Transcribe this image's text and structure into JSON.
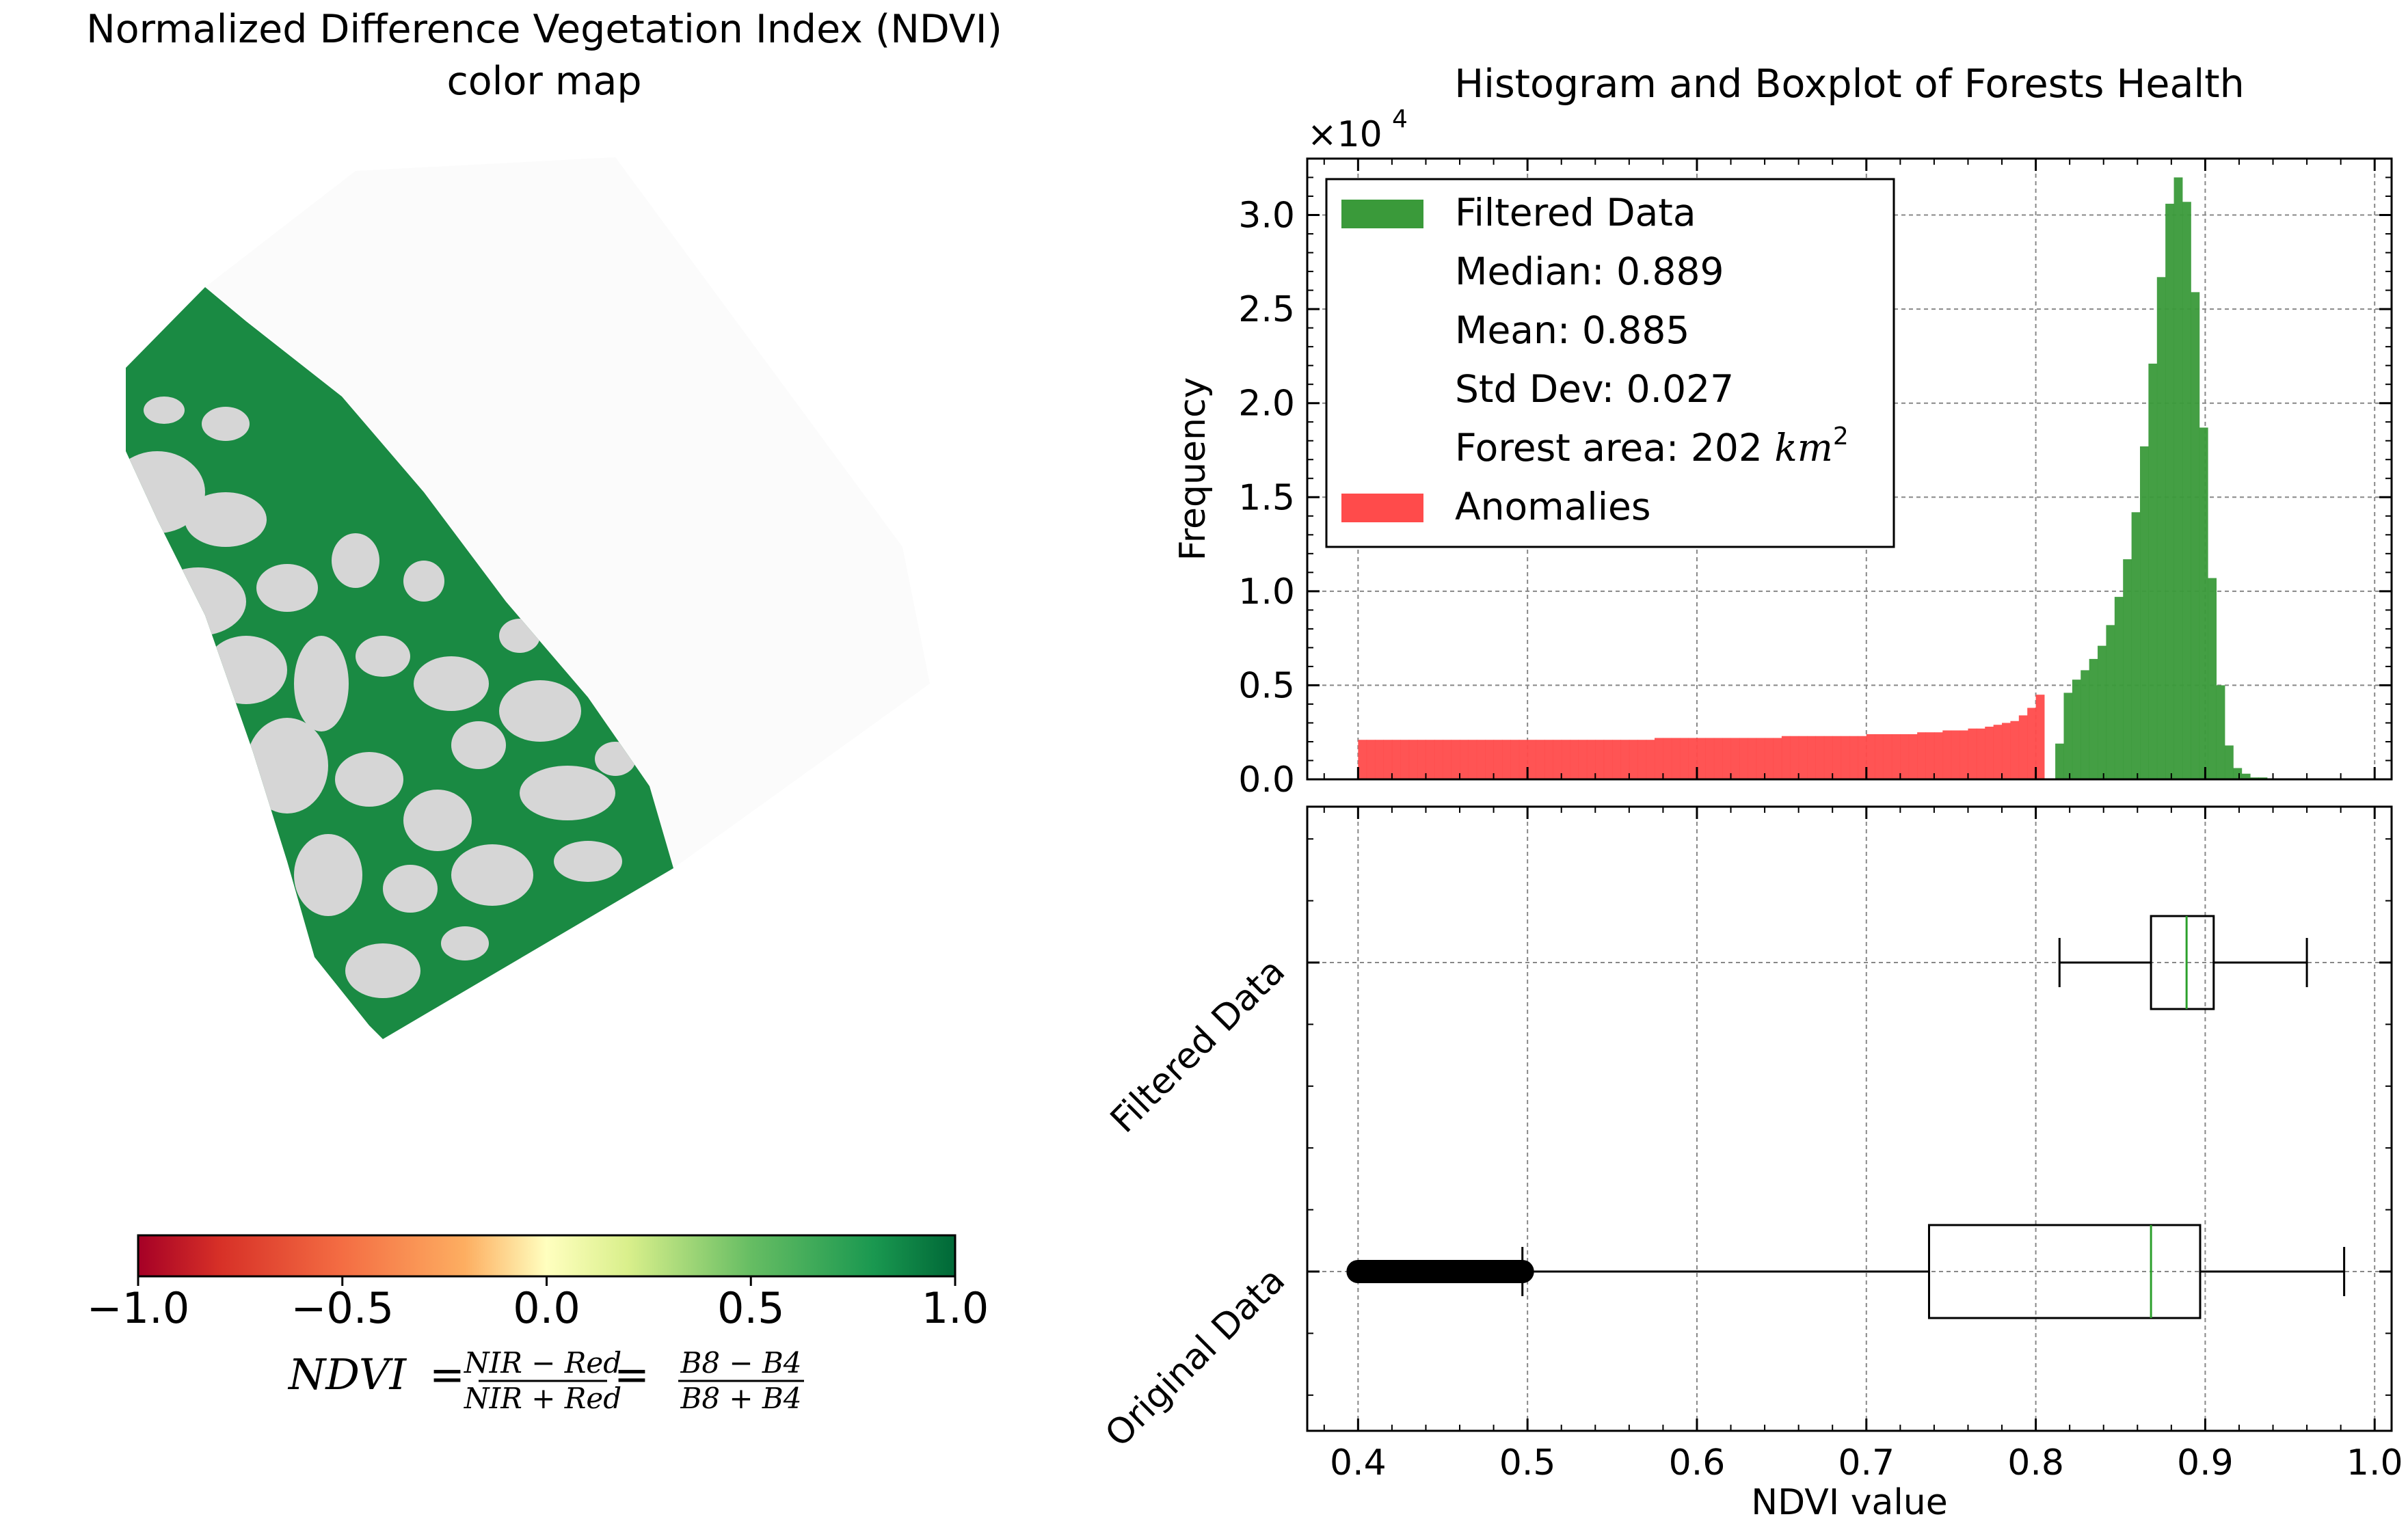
{
  "map": {
    "title_line1": "Normalized Difference Vegetation Index (NDVI)",
    "title_line2": "color map",
    "colorbar": {
      "ticks": [
        "−1.0",
        "−0.5",
        "0.0",
        "0.5",
        "1.0"
      ],
      "colors": [
        "#a50026",
        "#f46d43",
        "#ffffbf",
        "#66bd63",
        "#006837"
      ]
    },
    "formula": {
      "lhs": "NDVI",
      "eq": "=",
      "num1": "NIR − Red",
      "den1": "NIR + Red",
      "num2": "B8 − B4",
      "den2": "B8 + B4"
    },
    "colors": {
      "forest": "#1a8a43",
      "bare": "#d6d6d6"
    }
  },
  "chart_data": [
    {
      "type": "bar",
      "title": "Histogram and Boxplot of Forests Health",
      "ylabel": "Frequency",
      "y_multiplier": "×10",
      "y_multiplier_exp": "4",
      "xlim": [
        0.37,
        1.01
      ],
      "ylim": [
        0,
        3.3
      ],
      "y_ticks": [
        0.0,
        0.5,
        1.0,
        1.5,
        2.0,
        2.5,
        3.0
      ],
      "y_tick_labels": [
        "0.0",
        "0.5",
        "1.0",
        "1.5",
        "2.0",
        "2.5",
        "3.0"
      ],
      "x_ticks": [
        0.4,
        0.5,
        0.6,
        0.7,
        0.8,
        0.9,
        1.0
      ],
      "grid": true,
      "legend_position": "top-left",
      "legend": {
        "filtered": "Filtered Data",
        "median": "Median: 0.889",
        "mean": "Mean: 0.885",
        "std": "Std Dev: 0.027",
        "area_prefix": "Forest area: 202 ",
        "area_unit": "km",
        "area_exp": "2",
        "anomalies": "Anomalies"
      },
      "series": [
        {
          "name": "Anomalies",
          "color": "#ff4b4b",
          "bin_start": 0.4,
          "bin_width": 0.005,
          "values": [
            0.21,
            0.21,
            0.21,
            0.21,
            0.21,
            0.21,
            0.21,
            0.21,
            0.21,
            0.21,
            0.21,
            0.21,
            0.21,
            0.21,
            0.21,
            0.21,
            0.21,
            0.21,
            0.21,
            0.21,
            0.21,
            0.21,
            0.21,
            0.21,
            0.21,
            0.21,
            0.21,
            0.21,
            0.21,
            0.21,
            0.21,
            0.21,
            0.21,
            0.21,
            0.21,
            0.22,
            0.22,
            0.22,
            0.22,
            0.22,
            0.22,
            0.22,
            0.22,
            0.22,
            0.22,
            0.22,
            0.22,
            0.22,
            0.22,
            0.22,
            0.23,
            0.23,
            0.23,
            0.23,
            0.23,
            0.23,
            0.23,
            0.23,
            0.23,
            0.23,
            0.24,
            0.24,
            0.24,
            0.24,
            0.24,
            0.24,
            0.25,
            0.25,
            0.25,
            0.26,
            0.26,
            0.26,
            0.27,
            0.27,
            0.28,
            0.29,
            0.3,
            0.31,
            0.34,
            0.38,
            0.45
          ]
        },
        {
          "name": "Filtered Data",
          "color": "#3a9a3a",
          "bin_start": 0.8115,
          "bin_width": 0.005,
          "values": [
            0.19,
            0.46,
            0.53,
            0.58,
            0.64,
            0.71,
            0.82,
            0.97,
            1.17,
            1.42,
            1.77,
            2.21,
            2.67,
            3.06,
            3.2,
            3.07,
            2.59,
            1.87,
            1.07,
            0.5,
            0.18,
            0.06,
            0.03,
            0.01,
            0.01,
            0.005,
            0.003,
            0.002,
            0.001,
            0.001
          ]
        }
      ]
    },
    {
      "type": "box",
      "xlabel": "NDVI value",
      "xlim": [
        0.37,
        1.01
      ],
      "x_ticks": [
        0.4,
        0.5,
        0.6,
        0.7,
        0.8,
        0.9,
        1.0
      ],
      "x_tick_labels": [
        "0.4",
        "0.5",
        "0.6",
        "0.7",
        "0.8",
        "0.9",
        "1.0"
      ],
      "grid": true,
      "median_color": "#2ca02c",
      "boxes": [
        {
          "name": "Original Data",
          "whisker_low": 0.497,
          "q1": 0.737,
          "median": 0.868,
          "q3": 0.897,
          "whisker_high": 0.982,
          "outliers_range": [
            0.4,
            0.497
          ]
        },
        {
          "name": "Filtered Data",
          "whisker_low": 0.814,
          "q1": 0.868,
          "median": 0.889,
          "q3": 0.905,
          "whisker_high": 0.96
        }
      ]
    }
  ]
}
